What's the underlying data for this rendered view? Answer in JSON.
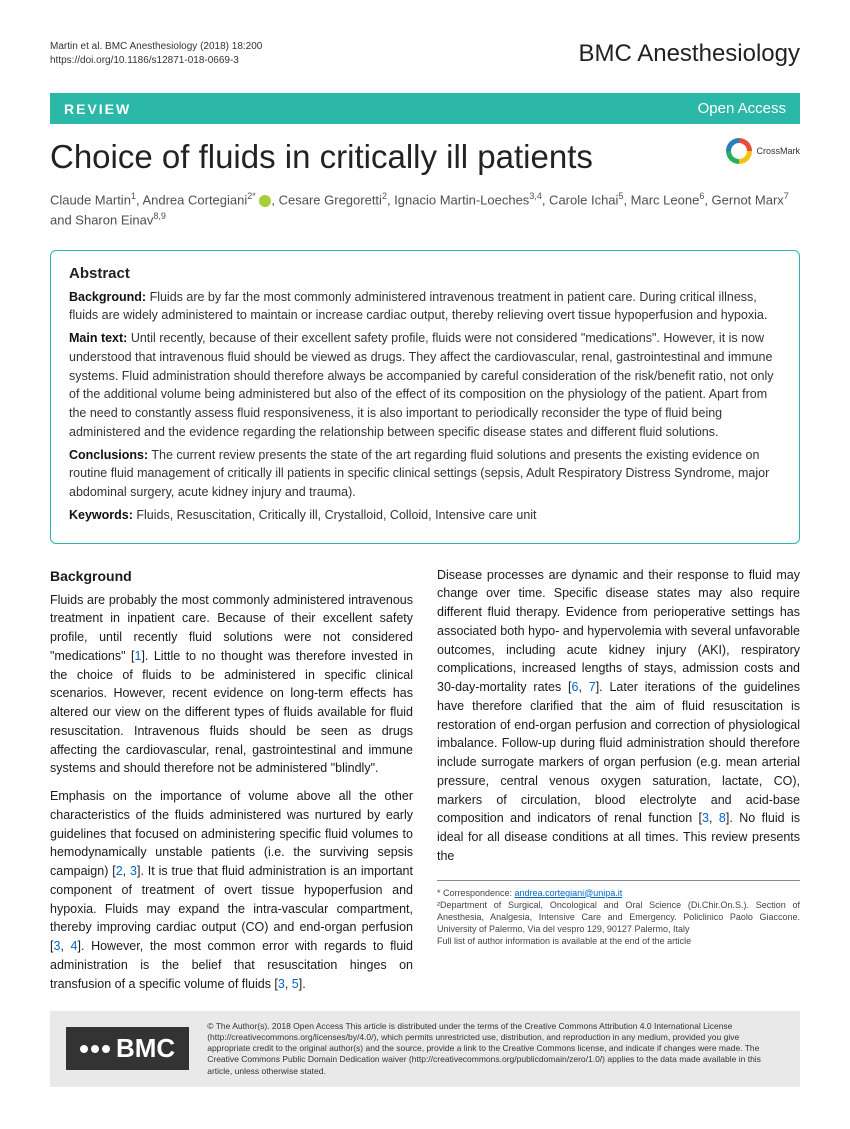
{
  "header": {
    "citation_line1": "Martin et al. BMC Anesthesiology      (2018) 18:200",
    "citation_line2": "https://doi.org/10.1186/s12871-018-0669-3",
    "journal": "BMC Anesthesiology"
  },
  "banner": {
    "left": "REVIEW",
    "right": "Open Access"
  },
  "title": "Choice of fluids in critically ill patients",
  "crossmark_label": "CrossMark",
  "authors_html": "Claude Martin<sup>1</sup>, Andrea Cortegiani<sup>2*</sup> <span class='orcid' data-name='orcid-icon' data-interactable='false'></span>, Cesare Gregoretti<sup>2</sup>, Ignacio Martin-Loeches<sup>3,4</sup>, Carole Ichai<sup>5</sup>, Marc Leone<sup>6</sup>, Gernot Marx<sup>7</sup> and Sharon Einav<sup>8,9</sup>",
  "abstract": {
    "heading": "Abstract",
    "background_label": "Background:",
    "background_text": " Fluids are by far the most commonly administered intravenous treatment in patient care. During critical illness, fluids are widely administered to maintain or increase cardiac output, thereby relieving overt tissue hypoperfusion and hypoxia.",
    "main_label": "Main text:",
    "main_text": " Until recently, because of their excellent safety profile, fluids were not considered \"medications\". However, it is now understood that intravenous fluid should be viewed as drugs. They affect the cardiovascular, renal, gastrointestinal and immune systems. Fluid administration should therefore always be accompanied by careful consideration of the risk/benefit ratio, not only of the additional volume being administered but also of the effect of its composition on the physiology of the patient. Apart from the need to constantly assess fluid responsiveness, it is also important to periodically reconsider the type of fluid being administered and the evidence regarding the relationship between specific disease states and different fluid solutions.",
    "conclusions_label": "Conclusions:",
    "conclusions_text": " The current review presents the state of the art regarding fluid solutions and presents the existing evidence on routine fluid management of critically ill patients in specific clinical settings (sepsis, Adult Respiratory Distress Syndrome, major abdominal surgery, acute kidney injury and trauma).",
    "keywords_label": "Keywords:",
    "keywords_text": " Fluids, Resuscitation, Critically ill, Crystalloid, Colloid, Intensive care unit"
  },
  "body": {
    "bg_heading": "Background",
    "p1": "Fluids are probably the most commonly administered intravenous treatment in inpatient care. Because of their excellent safety profile, until recently fluid solutions were not considered \"medications\" [",
    "p1_ref1": "1",
    "p1_cont": "]. Little to no thought was therefore invested in the choice of fluids to be administered in specific clinical scenarios. However, recent evidence on long-term effects has altered our view on the different types of fluids available for fluid resuscitation. Intravenous fluids should be seen as drugs affecting the cardiovascular, renal, gastrointestinal and immune systems and should therefore not be administered \"blindly\".",
    "p2a": "Emphasis on the importance of volume above all the other characteristics of the fluids administered was nurtured by early guidelines that focused on administering specific fluid volumes to hemodynamically unstable patients (i.e. the surviving sepsis campaign) [",
    "p2_ref2": "2",
    "p2_sep": ", ",
    "p2_ref3a": "3",
    "p2b": "]. It is true that fluid administration is an important component of treatment of overt tissue hypoperfusion and hypoxia. Fluids may expand the intra-vascular compartment, thereby improving cardiac output (CO) and end-organ perfusion [",
    "p2_ref3b": "3",
    "p2_ref4": "4",
    "p2c": "]. However, the most common error with regards to fluid administration is the belief that resuscitation hinges on transfusion of a specific volume of fluids [",
    "p2_ref3c": "3",
    "p2_ref5": "5",
    "p2d": "].",
    "p3a": "Disease processes are dynamic and their response to fluid may change over time. Specific disease states may also require different fluid therapy. Evidence from perioperative settings has associated both hypo- and hypervolemia with several unfavorable outcomes, including acute kidney injury (AKI), respiratory complications, increased lengths of stays, admission costs and 30-day-mortality rates [",
    "p3_ref6": "6",
    "p3_ref7": "7",
    "p3b": "]. Later iterations of the guidelines have therefore clarified that the aim of fluid resuscitation is restoration of end-organ perfusion and correction of physiological imbalance. Follow-up during fluid administration should therefore include surrogate markers of organ perfusion (e.g. mean arterial pressure, central venous oxygen saturation, lactate, CO), markers of circulation, blood electrolyte and acid-base composition and indicators of renal function [",
    "p3_ref3": "3",
    "p3_ref8": "8",
    "p3c": "]. No fluid is ideal for all disease conditions at all times. This review presents the"
  },
  "correspondence": {
    "label": "* Correspondence: ",
    "email": "andrea.cortegiani@unipa.it",
    "affil": "²Department of Surgical, Oncological and Oral Science (Di.Chir.On.S.). Section of Anesthesia, Analgesia, Intensive Care and Emergency. Policlinico Paolo Giaccone. University of Palermo, Via del vespro 129, 90127 Palermo, Italy",
    "note": "Full list of author information is available at the end of the article"
  },
  "footer": {
    "bmc": "BMC",
    "license": "© The Author(s). 2018 Open Access This article is distributed under the terms of the Creative Commons Attribution 4.0 International License (http://creativecommons.org/licenses/by/4.0/), which permits unrestricted use, distribution, and reproduction in any medium, provided you give appropriate credit to the original author(s) and the source, provide a link to the Creative Commons license, and indicate if changes were made. The Creative Commons Public Domain Dedication waiver (http://creativecommons.org/publicdomain/zero/1.0/) applies to the data made available in this article, unless otherwise stated."
  },
  "colors": {
    "accent": "#2bb8a8",
    "link": "#0066cc"
  }
}
